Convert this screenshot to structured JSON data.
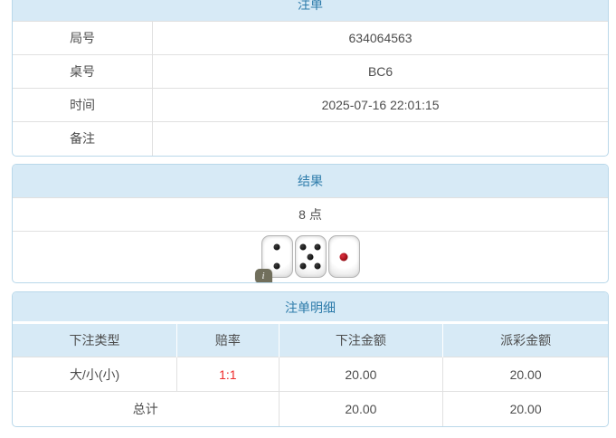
{
  "sections": {
    "bet": {
      "title": "注单",
      "rows": [
        {
          "label": "局号",
          "value": "634064563"
        },
        {
          "label": "桌号",
          "value": "BC6"
        },
        {
          "label": "时间",
          "value": "2025-07-16 22:01:15"
        },
        {
          "label": "备注",
          "value": ""
        }
      ]
    },
    "result": {
      "title": "结果",
      "points": "8 点",
      "dice": [
        {
          "value": 2,
          "color": "black"
        },
        {
          "value": 5,
          "color": "black"
        },
        {
          "value": 1,
          "color": "red"
        }
      ],
      "info_icon_label": "i"
    },
    "detail": {
      "title": "注单明细",
      "headers": [
        "下注类型",
        "赔率",
        "下注金额",
        "派彩金额"
      ],
      "rows": [
        {
          "bet_type": "大/小(小)",
          "odds": "1:1",
          "bet_amount": "20.00",
          "payout_amount": "20.00"
        }
      ],
      "total": {
        "label": "总计",
        "bet_amount": "20.00",
        "payout_amount": "20.00"
      }
    }
  },
  "colors": {
    "band_bg": "#d7eaf6",
    "band_text": "#2e7cab",
    "odds_red": "#ee2b2b",
    "border_blue": "#b9d8ea",
    "row_border": "#e0e0e0",
    "text": "#4d4d4d",
    "page_bg": "#ffffff"
  }
}
